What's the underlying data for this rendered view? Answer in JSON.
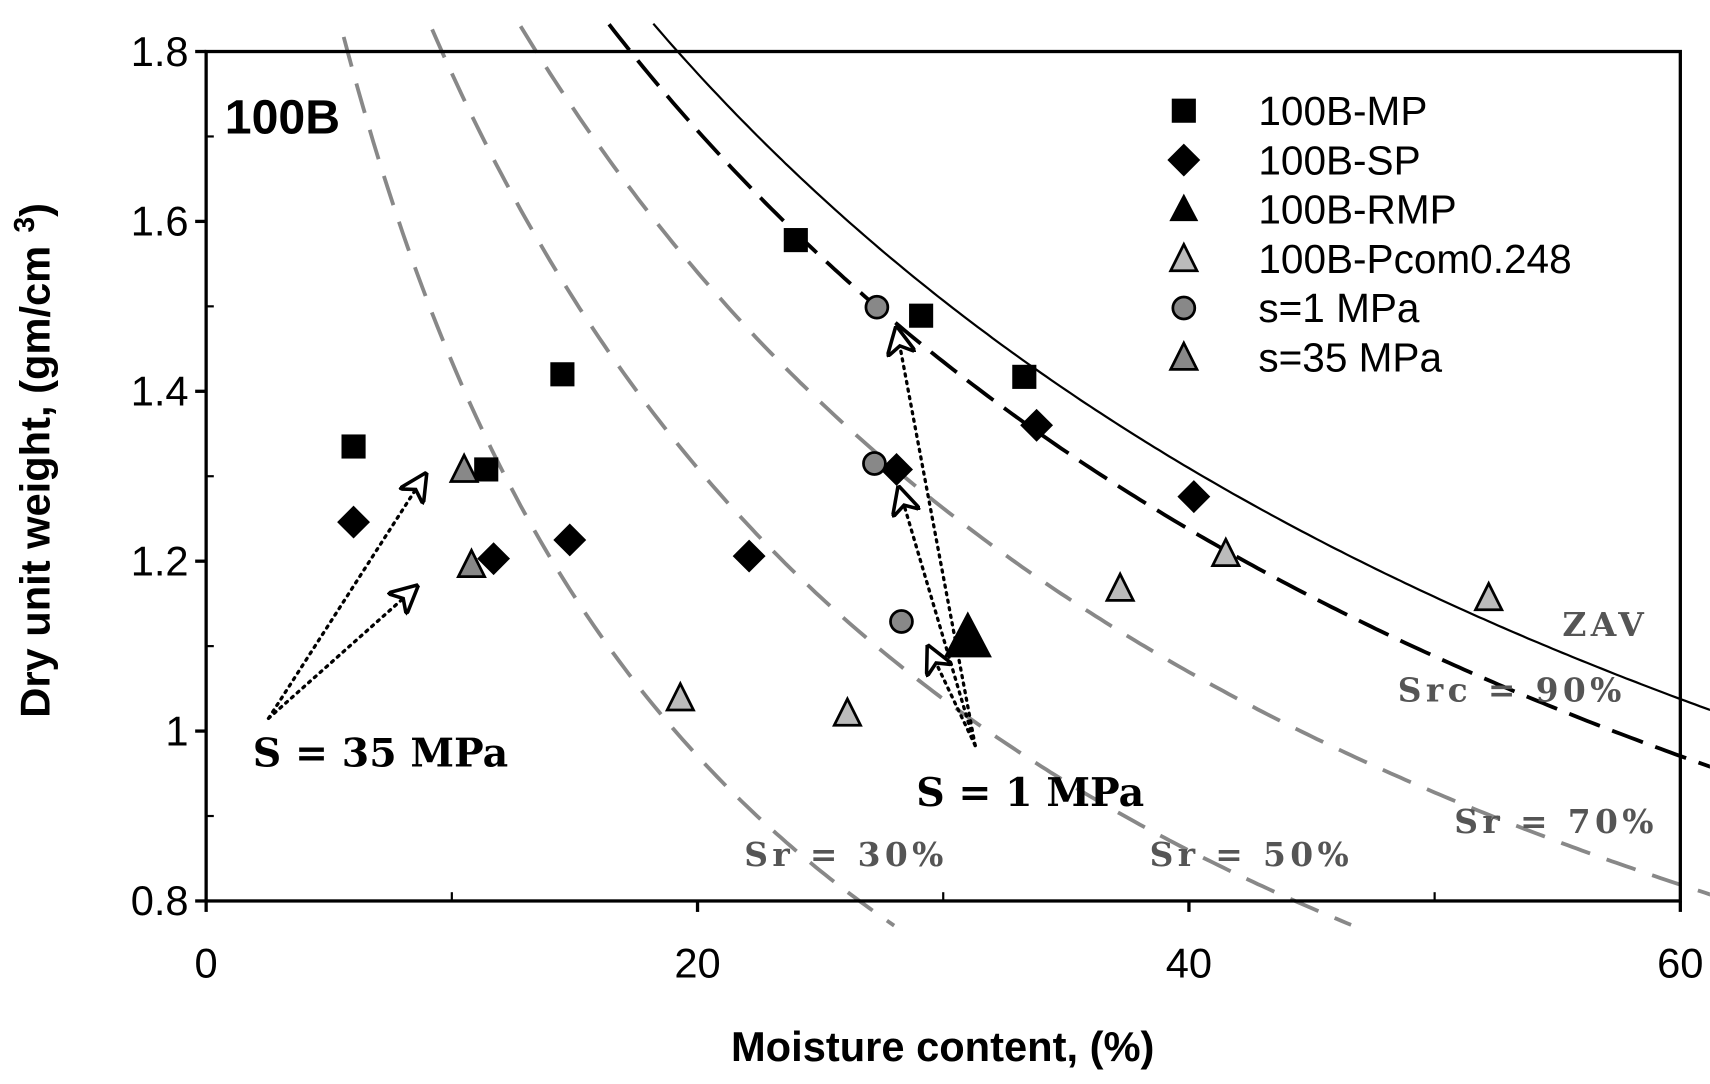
{
  "chart_data": {
    "type": "scatter",
    "panel_label": "100B",
    "xlabel": "Moisture content, (%)",
    "ylabel": "Dry unit weight, (gm/cm",
    "ylabel_sup": "3",
    "ylabel_close": ")",
    "xlim": [
      0,
      60
    ],
    "ylim": [
      0.8,
      1.8
    ],
    "xticks": [
      0,
      20,
      40,
      60
    ],
    "yticks": [
      0.8,
      1.0,
      1.2,
      1.4,
      1.6,
      1.8
    ],
    "xtick_labels": [
      "0",
      "20",
      "40",
      "60"
    ],
    "ytick_labels": [
      "0.8",
      "1",
      "1.2",
      "1.4",
      "1.6",
      "1.8"
    ],
    "grid": false,
    "legend_position": "top-right",
    "series": [
      {
        "name": "100B-MP",
        "marker": "square",
        "fill": "#000000",
        "x": [
          6.0,
          11.4,
          14.5,
          24.0,
          29.1,
          33.3
        ],
        "y": [
          1.335,
          1.308,
          1.42,
          1.578,
          1.489,
          1.417
        ]
      },
      {
        "name": "100B-SP",
        "marker": "diamond",
        "fill": "#000000",
        "x": [
          6.0,
          11.7,
          14.8,
          22.1,
          28.1,
          33.8,
          40.2
        ],
        "y": [
          1.246,
          1.203,
          1.225,
          1.206,
          1.308,
          1.36,
          1.276
        ]
      },
      {
        "name": "100B-RMP",
        "marker": "triangle-large",
        "fill": "#000000",
        "x": [
          31.0
        ],
        "y": [
          1.11
        ]
      },
      {
        "name": "100B-Pcom0.248",
        "marker": "triangle",
        "fill": "#bbbbbb",
        "x": [
          19.3,
          26.1,
          37.2,
          41.5,
          52.2
        ],
        "y": [
          1.039,
          1.021,
          1.168,
          1.209,
          1.157
        ]
      },
      {
        "name": "s=1 MPa",
        "marker": "circle",
        "fill": "#888888",
        "x": [
          27.3,
          27.2,
          28.3
        ],
        "y": [
          1.499,
          1.315,
          1.129
        ]
      },
      {
        "name": "s=35 MPa",
        "marker": "triangle",
        "fill": "#888888",
        "x": [
          10.5,
          10.8
        ],
        "y": [
          1.308,
          1.196
        ]
      }
    ],
    "reference_curves": {
      "Gs": 2.75,
      "curves": [
        {
          "name": "ZAV",
          "Sr": 1.0,
          "style": "solid",
          "color": "#000000",
          "label": "ZAV",
          "label_at": [
            55.2,
            1.112
          ]
        },
        {
          "name": "Src = 90%",
          "Sr": 0.9,
          "style": "dashed",
          "color": "#000000",
          "label": "Src = 90%",
          "label_at": [
            48.5,
            1.035
          ]
        },
        {
          "name": "Sr = 70%",
          "Sr": 0.7,
          "style": "dashed",
          "color": "#888888",
          "label": "Sr = 70%",
          "label_at": [
            50.8,
            0.88
          ]
        },
        {
          "name": "Sr = 50%",
          "Sr": 0.5,
          "style": "dashed",
          "color": "#888888",
          "label": "Sr = 50%",
          "label_at": [
            38.4,
            0.841
          ]
        },
        {
          "name": "Sr = 30%",
          "Sr": 0.3,
          "style": "dashed",
          "color": "#888888",
          "label": "Sr = 30%",
          "label_at": [
            21.9,
            0.841
          ]
        }
      ]
    },
    "annotations": [
      {
        "text": "S = 35 MPa",
        "at": [
          1.9,
          0.958
        ],
        "arrows": [
          {
            "from": [
              2.54,
              1.015
            ],
            "to": [
              8.92,
              1.302
            ]
          },
          {
            "from": [
              2.54,
              1.015
            ],
            "to": [
              8.56,
              1.17
            ]
          }
        ]
      },
      {
        "text": "S = 1 MPa",
        "at": [
          28.9,
          0.912
        ],
        "arrows": [
          {
            "from": [
              31.3,
              0.983
            ],
            "to": [
              28.1,
              1.474
            ]
          },
          {
            "from": [
              31.3,
              0.983
            ],
            "to": [
              28.2,
              1.286
            ]
          },
          {
            "from": [
              31.3,
              0.983
            ],
            "to": [
              29.4,
              1.099
            ]
          }
        ]
      }
    ]
  }
}
